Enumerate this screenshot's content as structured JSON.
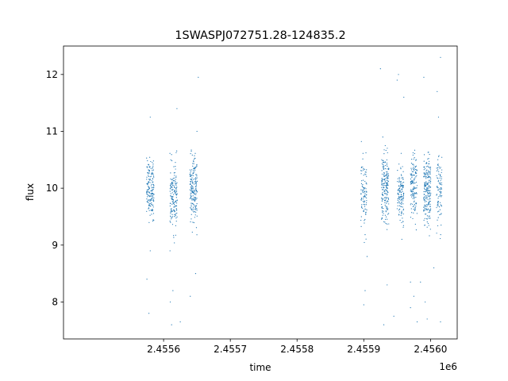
{
  "chart_data": {
    "type": "scatter",
    "title": "1SWASPJ072751.28-124835.2",
    "xlabel": "time",
    "ylabel": "flux",
    "x_offset_label": "1e6",
    "x_multiplier": 1000000,
    "xlim": [
      2.45545,
      2.45604
    ],
    "ylim": [
      7.35,
      12.5
    ],
    "x_ticks": [
      2.4556,
      2.4557,
      2.4558,
      2.4559,
      2.456
    ],
    "x_tick_labels": [
      "2.4556",
      "2.4557",
      "2.4558",
      "2.4559",
      "2.4560"
    ],
    "y_ticks": [
      8,
      9,
      10,
      11,
      12
    ],
    "y_tick_labels": [
      "8",
      "9",
      "10",
      "11",
      "12"
    ],
    "grid": false,
    "marker_color": "#1f77b4",
    "clusters": [
      {
        "x_center": 2.45558,
        "x_spread": 5.5e-06,
        "y_mean": 10.0,
        "y_sd": 0.25,
        "count": 170
      },
      {
        "x_center": 2.455615,
        "x_spread": 5.5e-06,
        "y_mean": 9.85,
        "y_sd": 0.28,
        "count": 160
      },
      {
        "x_center": 2.455645,
        "x_spread": 5.5e-06,
        "y_mean": 9.95,
        "y_sd": 0.3,
        "count": 190
      },
      {
        "x_center": 2.4559,
        "x_spread": 4.5e-06,
        "y_mean": 9.9,
        "y_sd": 0.3,
        "count": 100
      },
      {
        "x_center": 2.455932,
        "x_spread": 5.5e-06,
        "y_mean": 10.0,
        "y_sd": 0.3,
        "count": 190
      },
      {
        "x_center": 2.455955,
        "x_spread": 5e-06,
        "y_mean": 9.9,
        "y_sd": 0.28,
        "count": 130
      },
      {
        "x_center": 2.455975,
        "x_spread": 5e-06,
        "y_mean": 10.0,
        "y_sd": 0.28,
        "count": 140
      },
      {
        "x_center": 2.455995,
        "x_spread": 5.5e-06,
        "y_mean": 9.95,
        "y_sd": 0.3,
        "count": 210
      },
      {
        "x_center": 2.456013,
        "x_spread": 4e-06,
        "y_mean": 9.9,
        "y_sd": 0.3,
        "count": 90
      }
    ],
    "outliers": [
      [
        2.45558,
        8.9
      ],
      [
        2.455575,
        8.4
      ],
      [
        2.455578,
        7.8
      ],
      [
        2.45558,
        11.25
      ],
      [
        2.455612,
        7.6
      ],
      [
        2.45561,
        8.0
      ],
      [
        2.455614,
        8.2
      ],
      [
        2.45562,
        11.4
      ],
      [
        2.455625,
        7.65
      ],
      [
        2.45564,
        8.1
      ],
      [
        2.455648,
        8.5
      ],
      [
        2.45565,
        11.0
      ],
      [
        2.455652,
        11.95
      ],
      [
        2.455902,
        8.2
      ],
      [
        2.4559,
        7.95
      ],
      [
        2.455905,
        8.8
      ],
      [
        2.455925,
        12.1
      ],
      [
        2.45593,
        7.6
      ],
      [
        2.455935,
        8.3
      ],
      [
        2.45595,
        11.9
      ],
      [
        2.455952,
        12.0
      ],
      [
        2.45596,
        11.6
      ],
      [
        2.45597,
        7.9
      ],
      [
        2.455975,
        8.1
      ],
      [
        2.45598,
        7.65
      ],
      [
        2.455985,
        8.35
      ],
      [
        2.45599,
        11.95
      ],
      [
        2.455992,
        8.0
      ],
      [
        2.455995,
        7.7
      ],
      [
        2.456005,
        8.6
      ],
      [
        2.45601,
        11.7
      ],
      [
        2.456015,
        12.3
      ],
      [
        2.456015,
        7.65
      ],
      [
        2.456012,
        11.25
      ],
      [
        2.45597,
        8.35
      ],
      [
        2.455945,
        7.75
      ]
    ]
  }
}
